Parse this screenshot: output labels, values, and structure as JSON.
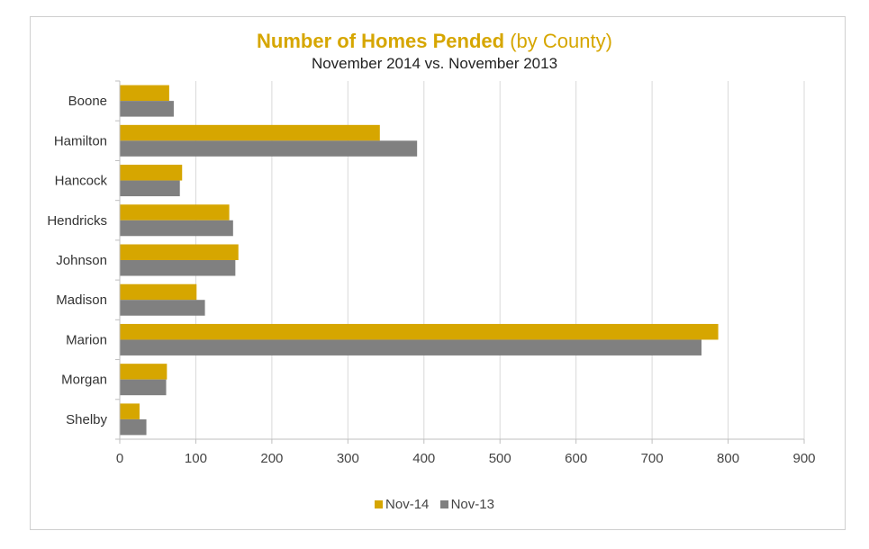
{
  "chart_data": {
    "type": "bar",
    "orientation": "horizontal",
    "title_main": "Number of Homes Pended",
    "title_suffix": "(by County)",
    "subtitle": "November 2014 vs. November 2013",
    "categories": [
      "Boone",
      "Hamilton",
      "Hancock",
      "Hendricks",
      "Johnson",
      "Madison",
      "Marion",
      "Morgan",
      "Shelby"
    ],
    "series": [
      {
        "name": "Nov-14",
        "color": "#d6a600",
        "values": [
          65,
          342,
          82,
          144,
          156,
          101,
          787,
          62,
          26
        ]
      },
      {
        "name": "Nov-13",
        "color": "#808080",
        "values": [
          71,
          391,
          79,
          149,
          152,
          112,
          765,
          61,
          35
        ]
      }
    ],
    "xlim": [
      0,
      900
    ],
    "xticks": [
      "0",
      "100",
      "200",
      "300",
      "400",
      "500",
      "600",
      "700",
      "800",
      "900"
    ],
    "grid": true,
    "legend_position": "bottom"
  }
}
